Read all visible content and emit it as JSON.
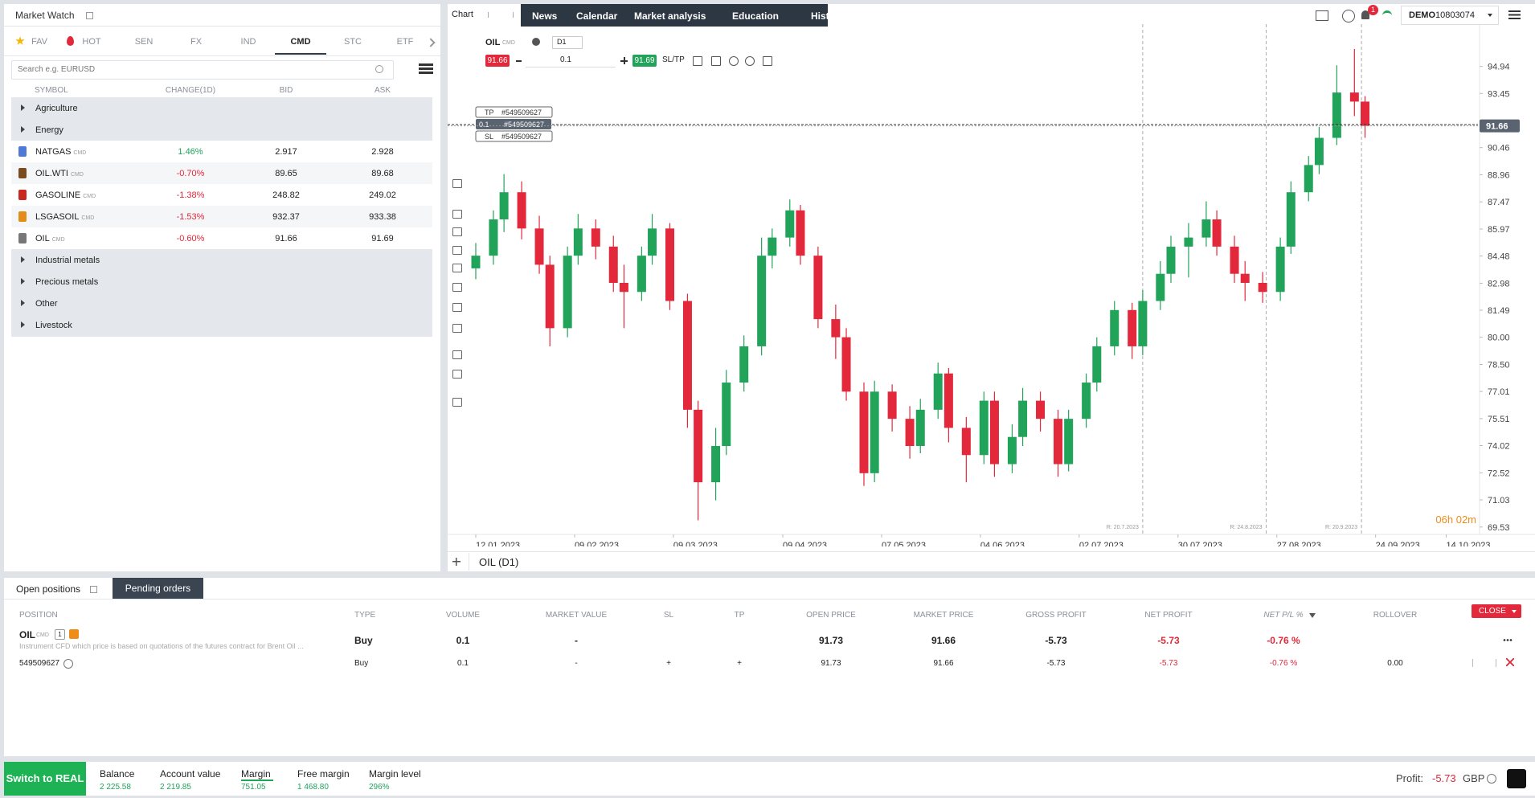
{
  "market_watch": {
    "title": "Market Watch",
    "tabs": [
      "FAV",
      "HOT",
      "SEN",
      "FX",
      "IND",
      "CMD",
      "STC",
      "ETF"
    ],
    "active_tab": "CMD",
    "search_placeholder": "Search e.g. EURUSD",
    "columns": [
      "SYMBOL",
      "CHANGE(1D)",
      "BID",
      "ASK"
    ],
    "groups_before": [
      "Agriculture",
      "Energy"
    ],
    "rows": [
      {
        "symbol": "NATGAS",
        "tag": "CMD",
        "change": "1.46%",
        "bid": "2.917",
        "ask": "2.928"
      },
      {
        "symbol": "OIL.WTI",
        "tag": "CMD",
        "change": "-0.70%",
        "bid": "89.65",
        "ask": "89.68"
      },
      {
        "symbol": "GASOLINE",
        "tag": "CMD",
        "change": "-1.38%",
        "bid": "248.82",
        "ask": "249.02"
      },
      {
        "symbol": "LSGASOIL",
        "tag": "CMD",
        "change": "-1.53%",
        "bid": "932.37",
        "ask": "933.38"
      },
      {
        "symbol": "OIL",
        "tag": "CMD",
        "change": "-0.60%",
        "bid": "91.66",
        "ask": "91.69"
      }
    ],
    "groups_after": [
      "Industrial metals",
      "Precious metals",
      "Other",
      "Livestock"
    ]
  },
  "top_nav": {
    "chart_tab": "Chart",
    "tabs": [
      "News",
      "Calendar",
      "Market analysis",
      "Education",
      "History"
    ],
    "notifications": "1",
    "account_type": "DEMO",
    "account_number": "10803074"
  },
  "chart_toolbar": {
    "symbol": "OIL",
    "tag": "CMD",
    "timeframe": "D1",
    "sell": "91.66",
    "volume": "0.1",
    "buy": "91.69",
    "sltp": "SL/TP"
  },
  "chart_data": {
    "type": "candlestick",
    "up_color": "#22a35a",
    "down_color": "#e2283a",
    "x": [
      "12.01.2023",
      "17.01.2023",
      "20.01.2023",
      "25.01.2023",
      "30.01.2023",
      "02.02.2023",
      "07.02.2023",
      "10.02.2023",
      "15.02.2023",
      "20.02.2023",
      "23.02.2023",
      "28.02.2023",
      "03.03.2023",
      "08.03.2023",
      "13.03.2023",
      "16.03.2023",
      "21.03.2023",
      "24.03.2023",
      "29.03.2023",
      "03.04.2023",
      "06.04.2023",
      "11.04.2023",
      "14.04.2023",
      "19.04.2023",
      "24.04.2023",
      "27.04.2023",
      "02.05.2023",
      "05.05.2023",
      "10.05.2023",
      "15.05.2023",
      "18.05.2023",
      "23.05.2023",
      "26.05.2023",
      "31.05.2023",
      "05.06.2023",
      "08.06.2023",
      "13.06.2023",
      "16.06.2023",
      "21.06.2023",
      "26.06.2023",
      "29.06.2023",
      "04.07.2023",
      "07.07.2023",
      "12.07.2023",
      "17.07.2023",
      "20.07.2023",
      "25.07.2023",
      "28.07.2023",
      "02.08.2023",
      "07.08.2023",
      "10.08.2023",
      "15.08.2023",
      "18.08.2023",
      "23.08.2023",
      "28.08.2023",
      "31.08.2023",
      "05.09.2023",
      "08.09.2023",
      "13.09.2023",
      "18.09.2023",
      "21.09.2023"
    ],
    "open": [
      83.8,
      84.5,
      86.5,
      88.0,
      86.0,
      84.0,
      80.5,
      84.5,
      86.0,
      85.0,
      83.0,
      82.5,
      84.5,
      86.0,
      82.0,
      76.0,
      72.0,
      74.0,
      77.5,
      79.5,
      84.5,
      85.5,
      87.0,
      84.5,
      81.0,
      80.0,
      77.0,
      72.5,
      77.0,
      75.5,
      74.0,
      76.0,
      78.0,
      75.0,
      73.5,
      76.5,
      73.0,
      74.5,
      76.5,
      75.5,
      73.0,
      75.5,
      77.5,
      79.5,
      81.5,
      79.5,
      82.0,
      83.5,
      85.0,
      85.5,
      86.5,
      85.0,
      83.5,
      83.0,
      82.5,
      85.0,
      88.0,
      89.5,
      91.0,
      93.5,
      93.0
    ],
    "high": [
      85.2,
      87.0,
      89.0,
      88.6,
      86.7,
      84.5,
      85.0,
      86.8,
      86.5,
      85.6,
      84.0,
      85.0,
      86.8,
      86.3,
      82.4,
      76.5,
      75.0,
      78.2,
      80.1,
      85.5,
      86.0,
      87.6,
      87.3,
      85.0,
      81.8,
      80.5,
      77.5,
      77.6,
      77.4,
      76.2,
      76.6,
      78.6,
      78.3,
      75.6,
      77.0,
      77.0,
      75.2,
      77.2,
      77.0,
      76.0,
      76.0,
      78.0,
      80.0,
      82.0,
      81.9,
      82.6,
      84.2,
      85.6,
      86.3,
      87.5,
      87.0,
      85.6,
      84.2,
      83.6,
      85.5,
      88.6,
      90.0,
      91.6,
      95.0,
      95.9,
      93.3
    ],
    "low": [
      83.2,
      84.0,
      85.8,
      85.4,
      83.5,
      79.5,
      80.0,
      84.0,
      84.3,
      82.5,
      80.5,
      82.0,
      84.0,
      81.5,
      75.0,
      69.9,
      71.0,
      73.5,
      77.0,
      79.0,
      83.8,
      85.0,
      84.0,
      80.5,
      78.8,
      76.5,
      71.8,
      72.0,
      74.8,
      73.3,
      73.6,
      75.5,
      74.2,
      72.0,
      73.0,
      72.3,
      72.5,
      74.0,
      74.8,
      72.3,
      72.6,
      75.0,
      77.0,
      79.0,
      78.8,
      79.0,
      81.5,
      83.0,
      83.3,
      85.0,
      84.5,
      83.0,
      82.0,
      81.9,
      82.0,
      84.6,
      87.5,
      89.0,
      90.6,
      92.2,
      91.0
    ],
    "close": [
      84.5,
      86.5,
      88.0,
      86.0,
      84.0,
      80.5,
      84.5,
      86.0,
      85.0,
      83.0,
      82.5,
      84.5,
      86.0,
      82.0,
      76.0,
      72.0,
      74.0,
      77.5,
      79.5,
      84.5,
      85.5,
      87.0,
      84.5,
      81.0,
      80.0,
      77.0,
      72.5,
      77.0,
      75.5,
      74.0,
      76.0,
      78.0,
      75.0,
      73.5,
      76.5,
      73.0,
      74.5,
      76.5,
      75.5,
      73.0,
      75.5,
      77.5,
      79.5,
      81.5,
      79.5,
      82.0,
      83.5,
      85.0,
      85.5,
      86.5,
      85.0,
      83.5,
      83.0,
      82.5,
      85.0,
      88.0,
      89.5,
      91.0,
      93.5,
      93.0,
      91.66
    ],
    "xlim": [
      "12.01.2023",
      "23.10.2023"
    ],
    "xticks": [
      "12.01.2023",
      "09.02.2023",
      "09.03.2023",
      "09.04.2023",
      "07.05.2023",
      "04.06.2023",
      "02.07.2023",
      "30.07.2023",
      "27.08.2023",
      "24.09.2023",
      "14.10.2023"
    ],
    "ylim": [
      69.3,
      95.9
    ],
    "yticks": [
      94.94,
      93.45,
      90.46,
      88.96,
      87.47,
      85.97,
      84.48,
      82.98,
      81.49,
      {
        "value": 80,
        "label": "80.00"
      },
      {
        "value": 78.5,
        "label": "78.50"
      },
      77.01,
      75.51,
      74.02,
      72.52,
      71.03,
      69.53
    ],
    "grid": false,
    "last": 91.66,
    "position": {
      "open_price": 91.73,
      "volume": "0.1",
      "order": "#549509627",
      "tp": "TP",
      "sl": "SL"
    },
    "annotations": [
      {
        "date": "20.7.2023",
        "label": "R: 20.7.2023"
      },
      {
        "date": "24.8.2023",
        "label": "R: 24.8.2023"
      },
      {
        "date": "20.9.2023",
        "label": "R: 20.9.2023"
      }
    ],
    "timer": "06h 02m"
  },
  "chart_footer": {
    "title": "OIL (D1)"
  },
  "positions": {
    "tabs": [
      "Open positions",
      "Pending orders"
    ],
    "columns": [
      "POSITION",
      "TYPE",
      "VOLUME",
      "MARKET VALUE",
      "SL",
      "TP",
      "OPEN PRICE",
      "MARKET PRICE",
      "GROSS PROFIT",
      "NET PROFIT",
      "NET P/L %",
      "ROLLOVER"
    ],
    "close": "CLOSE",
    "symbol": "OIL",
    "tag": "CMD",
    "count": "1",
    "description": "Instrument CFD which price is based on quotations of the futures contract for Brent Oil ...",
    "summary": [
      "Buy",
      "0.1",
      "-",
      null,
      null,
      "91.73",
      "91.66",
      "-5.73",
      "-5.73",
      "-0.76 %",
      null
    ],
    "detail": [
      "549509627",
      "Buy",
      "0.1",
      "-",
      "+",
      "+",
      "91.73",
      "91.66",
      "-5.73",
      "-5.73",
      "-0.76 %",
      "0.00"
    ]
  },
  "footer": {
    "switch": "Switch to REAL",
    "stats": [
      {
        "label": "Balance",
        "value": "2 225.58"
      },
      {
        "label": "Account value",
        "value": "2 219.85"
      },
      {
        "label": "Margin",
        "value": "751.05"
      },
      {
        "label": "Free margin",
        "value": "1 468.80"
      },
      {
        "label": "Margin level",
        "value": "296%"
      }
    ],
    "profit_label": "Profit:",
    "profit": "-5.73",
    "currency": "GBP"
  }
}
